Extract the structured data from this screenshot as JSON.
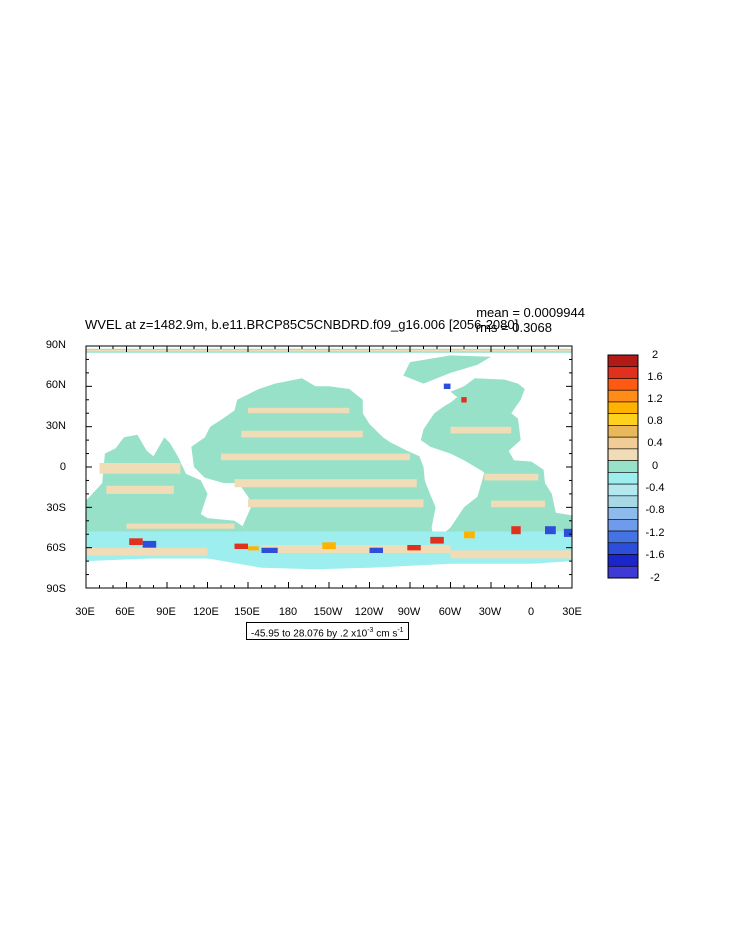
{
  "map": {
    "title": "WVEL at z=1482.9m, b.e11.BRCP85C5CNBDRD.f09_g16.006 [2056-2080]",
    "stats": {
      "mean": "mean = 0.0009944",
      "rms": "rms = 0.3068"
    },
    "lat_labels": [
      "90N",
      "60N",
      "30N",
      "0",
      "30S",
      "60S",
      "90S"
    ],
    "lon_labels": [
      "30E",
      "60E",
      "90E",
      "120E",
      "150E",
      "180",
      "150W",
      "120W",
      "90W",
      "60W",
      "30W",
      "0",
      "30E"
    ],
    "range_note": {
      "text": "-45.95 to 28.076 by .2 x10",
      "exponent": "-3",
      "units": " cm s",
      "units_exp": "-1"
    }
  },
  "colorbar": {
    "labels": [
      "2",
      "1.6",
      "1.2",
      "0.8",
      "0.4",
      "0",
      "-0.4",
      "-0.8",
      "-1.2",
      "-1.6",
      "-2"
    ],
    "colors": [
      "#b21a17",
      "#e0311f",
      "#ff5a14",
      "#ff8c19",
      "#ffb300",
      "#ffd11f",
      "#e9b85a",
      "#f2cc96",
      "#f0dcb6",
      "#96e1c8",
      "#9deeee",
      "#b2e8ee",
      "#a6d8e6",
      "#8ebaec",
      "#6f9bec",
      "#4673e3",
      "#2d4ed9",
      "#1a26c9",
      "#3e3ad6"
    ]
  },
  "palette": {
    "ocean_main": "#96e1c8",
    "ocean_tan": "#f0dcb6",
    "warm": "#ffb300",
    "hot": "#e0311f",
    "cold": "#2d4ed9",
    "cyan": "#9deeee"
  }
}
